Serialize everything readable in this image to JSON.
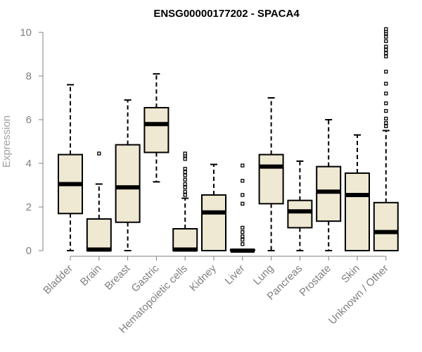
{
  "chart_data": {
    "type": "boxplot",
    "title": "ENSG00000177202 - SPACA4",
    "xlabel": "",
    "ylabel": "Expression",
    "ylim": [
      0,
      10
    ],
    "yticks": [
      0,
      2,
      4,
      6,
      8,
      10
    ],
    "grid": false,
    "legend": "none",
    "box_fill": "#efe8d2",
    "outlier_color": "#000000",
    "categories": [
      "Bladder",
      "Brain",
      "Breast",
      "Gastric",
      "Hematopoietic cells",
      "Kidney",
      "Liver",
      "Lung",
      "Pancreas",
      "Prostate",
      "Skin",
      "Unknown / Other"
    ],
    "boxes": [
      {
        "min": 0,
        "q1": 1.7,
        "median": 3.05,
        "q3": 4.4,
        "max": 7.6,
        "outliers": []
      },
      {
        "min": 0,
        "q1": 0,
        "median": 0.05,
        "q3": 1.45,
        "max": 3.05,
        "outliers": [
          4.45
        ]
      },
      {
        "min": 0,
        "q1": 1.3,
        "median": 2.9,
        "q3": 4.85,
        "max": 6.9,
        "outliers": []
      },
      {
        "min": 3.15,
        "q1": 4.5,
        "median": 5.8,
        "q3": 6.55,
        "max": 8.1,
        "outliers": []
      },
      {
        "min": 0,
        "q1": 0,
        "median": 0.05,
        "q3": 1.0,
        "max": 2.4,
        "outliers": [
          2.55,
          2.7,
          2.9,
          3.05,
          3.25,
          3.45,
          3.6,
          3.75,
          4.2,
          4.35,
          4.45
        ]
      },
      {
        "min": 0,
        "q1": 0,
        "median": 1.75,
        "q3": 2.55,
        "max": 3.95,
        "outliers": []
      },
      {
        "min": 0,
        "q1": 0,
        "median": 0.0,
        "q3": 0.05,
        "max": 0.05,
        "outliers": [
          0.3,
          0.5,
          0.65,
          0.85,
          1.05,
          2.15,
          2.55,
          3.2,
          3.9
        ]
      },
      {
        "min": 0,
        "q1": 2.15,
        "median": 3.85,
        "q3": 4.4,
        "max": 7.0,
        "outliers": []
      },
      {
        "min": 0,
        "q1": 1.05,
        "median": 1.8,
        "q3": 2.3,
        "max": 4.1,
        "outliers": []
      },
      {
        "min": 0,
        "q1": 1.35,
        "median": 2.7,
        "q3": 3.85,
        "max": 6.0,
        "outliers": []
      },
      {
        "min": 0,
        "q1": 0,
        "median": 2.55,
        "q3": 3.55,
        "max": 5.3,
        "outliers": []
      },
      {
        "min": 0,
        "q1": 0,
        "median": 0.85,
        "q3": 2.2,
        "max": 5.5,
        "outliers": [
          5.7,
          5.85,
          6.05,
          6.4,
          6.75,
          7.2,
          7.65,
          8.2,
          8.9,
          9.05,
          9.2,
          9.35,
          9.6,
          9.8,
          9.95,
          10.05,
          10.15
        ]
      }
    ]
  }
}
